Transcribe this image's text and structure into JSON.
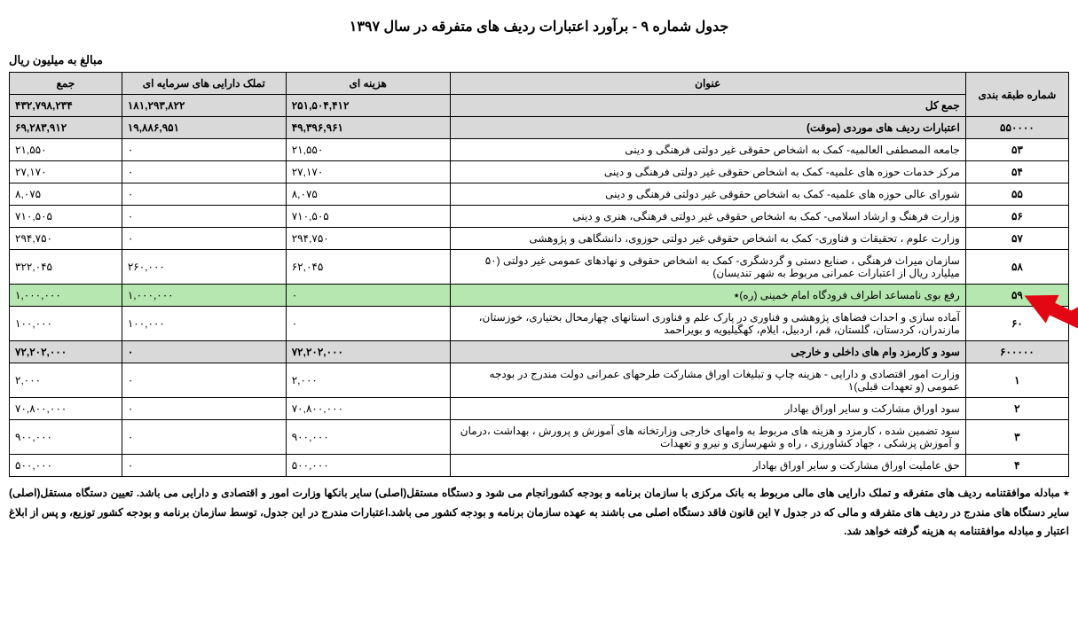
{
  "title": "جدول شماره ۹ - برآورد اعتبارات ردیف های متفرقه در سال ۱۳۹۷",
  "unit_label": "مبالغ به میلیون ریال",
  "columns": {
    "class_no": "شماره طبقه بندی",
    "title": "عنوان",
    "cost": "هزینه ای",
    "capital": "تملک دارایی های سرمایه ای",
    "total": "جمع"
  },
  "grand_total": {
    "title": "جمع کل",
    "cost": "۲۵۱,۵۰۴,۴۱۲",
    "capital": "۱۸۱,۲۹۳,۸۲۲",
    "total": "۴۳۲,۷۹۸,۲۳۴"
  },
  "section1": {
    "class_no": "۵۵۰۰۰۰",
    "title": "اعتبارات ردیف های موردی (موقت)",
    "cost": "۴۹,۳۹۶,۹۶۱",
    "capital": "۱۹,۸۸۶,۹۵۱",
    "total": "۶۹,۲۸۳,۹۱۲"
  },
  "rows1": [
    {
      "class_no": "۵۳",
      "title": "جامعه المصطفی العالمیه- کمک به اشخاص حقوقی غیر دولتی فرهنگی و دینی",
      "cost": "۲۱,۵۵۰",
      "capital": "۰",
      "total": "۲۱,۵۵۰"
    },
    {
      "class_no": "۵۴",
      "title": "مرکز خدمات حوزه های علمیه- کمک به اشخاص حقوقی غیر دولتی فرهنگی و دینی",
      "cost": "۲۷,۱۷۰",
      "capital": "۰",
      "total": "۲۷,۱۷۰"
    },
    {
      "class_no": "۵۵",
      "title": "شورای عالی حوزه  های علمیه- کمک به اشخاص حقوقی غیر دولتی فرهنگی و دینی",
      "cost": "۸,۰۷۵",
      "capital": "۰",
      "total": "۸,۰۷۵"
    },
    {
      "class_no": "۵۶",
      "title": "وزارت فرهنگ و ارشاد اسلامی- کمک به اشخاص حقوقی غیر دولتی فرهنگی، هنری و دینی",
      "cost": "۷۱۰,۵۰۵",
      "capital": "۰",
      "total": "۷۱۰,۵۰۵"
    },
    {
      "class_no": "۵۷",
      "title": "وزارت علوم ، تحقیقات و فناوری- کمک به اشخاص حقوقی غیر دولتی حوزوی، دانشگاهی و پژوهشی",
      "cost": "۲۹۴,۷۵۰",
      "capital": "۰",
      "total": "۲۹۴,۷۵۰"
    },
    {
      "class_no": "۵۸",
      "title": "سازمان میراث فرهنگی ، صنایع دستی و گردشگری- کمک به اشخاص حقوقی و نهادهای عمومی غیر دولتی (۵۰ میلیارد ریال از اعتبارات عمرانی مربوط به شهر تندیسان)",
      "cost": "۶۲,۰۴۵",
      "capital": "۲۶۰,۰۰۰",
      "total": "۳۲۲,۰۴۵"
    }
  ],
  "highlight_row": {
    "class_no": "۵۹",
    "title": "رفع بوی نامساعد اطراف فرودگاه امام خمینی (ره)٭",
    "cost": "۰",
    "capital": "۱,۰۰۰,۰۰۰",
    "total": "۱,۰۰۰,۰۰۰"
  },
  "row60": {
    "class_no": "۶۰",
    "title": "آماده سازی و احداث فضاهای پژوهشی و فناوری در پارک علم و فناوری استانهای چهارمحال بختیاری، خوزستان، مازندران، کردستان، گلستان، قم، اردبیل، ایلام، کهگیلیویه و بویراحمد",
    "cost": "۰",
    "capital": "۱۰۰,۰۰۰",
    "total": "۱۰۰,۰۰۰"
  },
  "section2": {
    "class_no": "۶۰۰۰۰۰",
    "title": "سود و کارمزد وام های داخلی و خارجی",
    "cost": "۷۲,۲۰۲,۰۰۰",
    "capital": "۰",
    "total": "۷۲,۲۰۲,۰۰۰"
  },
  "rows2": [
    {
      "class_no": "۱",
      "title": "وزارت امور اقتصادی و دارایی - هزینه چاپ و تبلیغات اوراق مشارکت طرحهای عمرانی دولت مندرج در بودجه عمومی (و تعهدات قبلی)۱",
      "cost": "۲,۰۰۰",
      "capital": "۰",
      "total": "۲,۰۰۰"
    },
    {
      "class_no": "۲",
      "title": "سود اوراق مشارکت و سایر اوراق بهادار",
      "cost": "۷۰,۸۰۰,۰۰۰",
      "capital": "۰",
      "total": "۷۰,۸۰۰,۰۰۰"
    },
    {
      "class_no": "۳",
      "title": "سود تضمین شده ، کارمزد و هزینه های مربوط به وامهای خارجی وزارتخانه های آموزش و پرورش ، بهداشت ،درمان و آموزش پزشکی ، جهاد کشاورزی ، راه و شهرسازی و نیرو و تعهدات",
      "cost": "۹۰۰,۰۰۰",
      "capital": "۰",
      "total": "۹۰۰,۰۰۰"
    },
    {
      "class_no": "۴",
      "title": "حق عاملیت اوراق مشارکت و سایر اوراق بهادار",
      "cost": "۵۰۰,۰۰۰",
      "capital": "۰",
      "total": "۵۰۰,۰۰۰"
    }
  ],
  "footnote": "٭ مبادله موافقتنامه ردیف های متفرقه و تملک دارایی های مالی مربوط به بانک مرکزی با سازمان برنامه و بودجه کشورانجام می شود و دستگاه مستقل(اصلی) سایر بانکها وزارت امور و اقتصادی و دارایی می باشد. تعیین دستگاه مستقل(اصلی) سایر دستگاه های مندرج در ردیف های متفرقه و مالی که در جدول ۷ این قانون فاقد دستگاه اصلی می باشند به عهده سازمان برنامه و بودجه کشور می باشد.اعتبارات مندرج در این جدول، توسط سازمان برنامه و بودجه کشور توزیع، و پس از ابلاغ اعتبار و مبادله موافقتنامه به هزینه گرفته خواهد شد.",
  "colors": {
    "highlight_bg": "#b6e7b0",
    "shaded_bg": "#d9d9d9",
    "arrow_fill": "#e30613"
  }
}
